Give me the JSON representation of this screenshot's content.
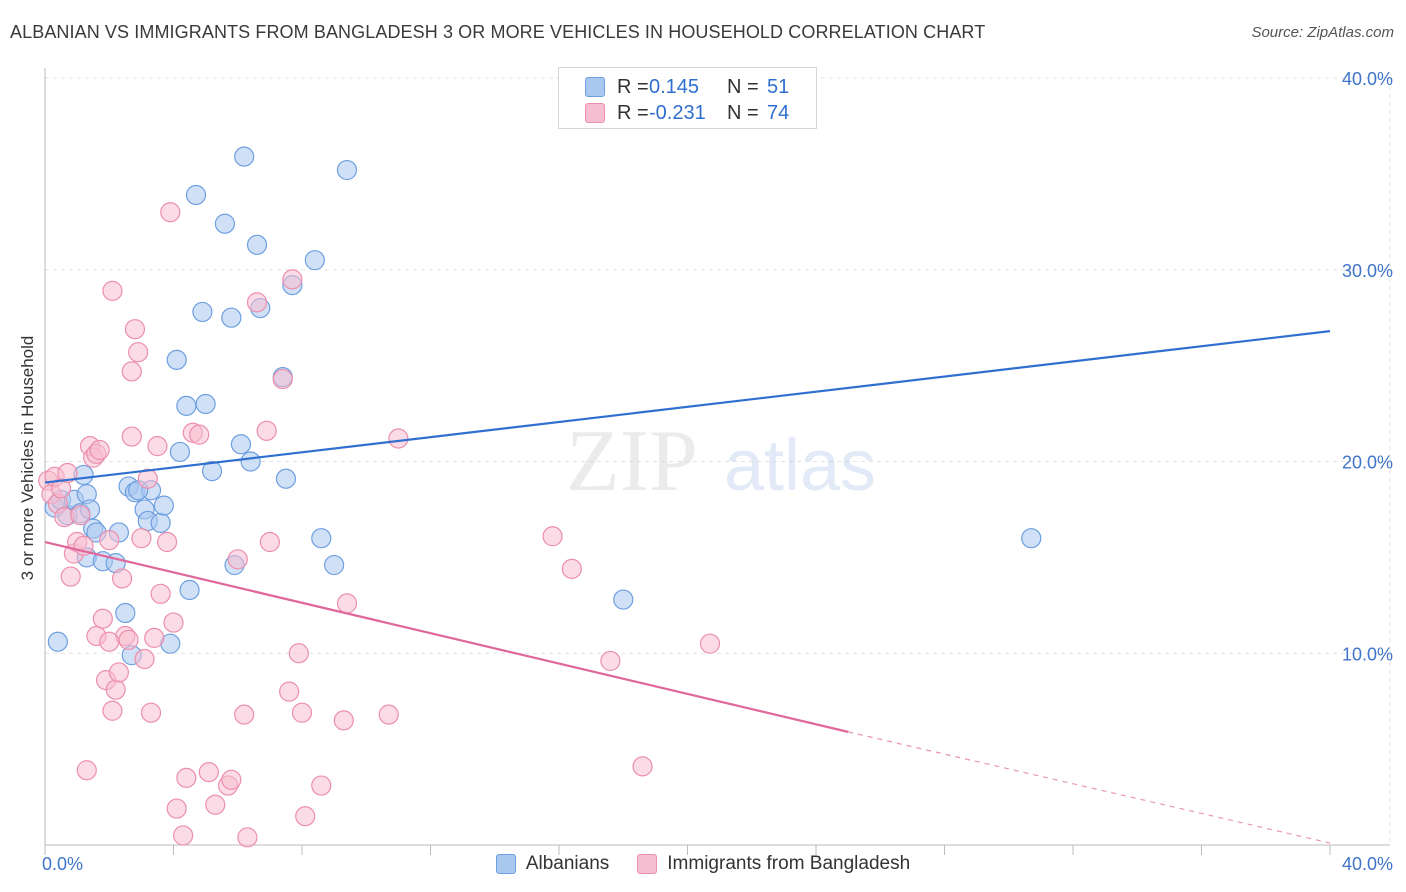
{
  "title": "ALBANIAN VS IMMIGRANTS FROM BANGLADESH 3 OR MORE VEHICLES IN HOUSEHOLD CORRELATION CHART",
  "source": "Source: ZipAtlas.com",
  "watermark": {
    "zip": "ZIP",
    "atlas": "atlas"
  },
  "legend_top": {
    "rows": [
      {
        "r_label": "R =",
        "r_value": "0.145",
        "n_label": "N =",
        "n_value": "51",
        "color": "#a9c8f0",
        "stroke": "#6e9fe0"
      },
      {
        "r_label": "R =",
        "r_value": "-0.231",
        "n_label": "N =",
        "n_value": "74",
        "color": "#f7bdd0",
        "stroke": "#ec8fae"
      }
    ]
  },
  "legend_bottom": {
    "items": [
      {
        "label": "Albanians",
        "color": "#a9c8f0",
        "stroke": "#6e9fe0"
      },
      {
        "label": "Immigrants from Bangladesh",
        "color": "#f7bdd0",
        "stroke": "#ec8fae"
      }
    ]
  },
  "chart_data": {
    "type": "scatter",
    "title": "ALBANIAN VS IMMIGRANTS FROM BANGLADESH 3 OR MORE VEHICLES IN HOUSEHOLD CORRELATION CHART",
    "xlabel": "",
    "ylabel": "3 or more Vehicles in Household",
    "xlim": [
      0,
      40
    ],
    "ylim": [
      0,
      40
    ],
    "x_tick_labels": [
      "0.0%",
      "40.0%"
    ],
    "y_ticks": [
      10,
      20,
      30,
      40
    ],
    "y_tick_labels": [
      "10.0%",
      "20.0%",
      "30.0%",
      "40.0%"
    ],
    "grid": true,
    "series": [
      {
        "name": "Albanians",
        "color": "#a9c8f0",
        "stroke": "#6e9fe0",
        "line_color": "#2f6fcf",
        "trend": {
          "x0": 0,
          "y0": 18.9,
          "x1": 40,
          "y1": 26.8
        },
        "points": [
          [
            0.3,
            17.6
          ],
          [
            0.5,
            18.0
          ],
          [
            0.7,
            17.2
          ],
          [
            0.9,
            18.0
          ],
          [
            1.1,
            17.3
          ],
          [
            0.4,
            10.6
          ],
          [
            1.3,
            18.3
          ],
          [
            1.2,
            19.3
          ],
          [
            1.5,
            16.5
          ],
          [
            1.6,
            16.3
          ],
          [
            1.3,
            15.0
          ],
          [
            1.8,
            14.8
          ],
          [
            2.2,
            14.7
          ],
          [
            2.3,
            16.3
          ],
          [
            2.5,
            12.1
          ],
          [
            2.6,
            18.7
          ],
          [
            2.8,
            18.4
          ],
          [
            2.7,
            9.9
          ],
          [
            3.1,
            17.5
          ],
          [
            3.2,
            16.9
          ],
          [
            3.3,
            18.5
          ],
          [
            3.6,
            16.8
          ],
          [
            3.7,
            17.7
          ],
          [
            3.9,
            10.5
          ],
          [
            4.1,
            25.3
          ],
          [
            4.2,
            20.5
          ],
          [
            4.4,
            22.9
          ],
          [
            4.5,
            13.3
          ],
          [
            4.7,
            33.9
          ],
          [
            4.9,
            27.8
          ],
          [
            5.0,
            23.0
          ],
          [
            5.2,
            19.5
          ],
          [
            5.6,
            32.4
          ],
          [
            5.8,
            27.5
          ],
          [
            5.9,
            14.6
          ],
          [
            6.1,
            20.9
          ],
          [
            6.2,
            35.9
          ],
          [
            6.4,
            20.0
          ],
          [
            6.6,
            31.3
          ],
          [
            6.7,
            28.0
          ],
          [
            7.4,
            24.4
          ],
          [
            7.5,
            19.1
          ],
          [
            7.7,
            29.2
          ],
          [
            8.4,
            30.5
          ],
          [
            8.6,
            16.0
          ],
          [
            9.0,
            14.6
          ],
          [
            9.4,
            35.2
          ],
          [
            18.0,
            12.8
          ],
          [
            30.7,
            16.0
          ],
          [
            2.9,
            18.5
          ],
          [
            1.4,
            17.5
          ]
        ]
      },
      {
        "name": "Immigrants from Bangladesh",
        "color": "#f7bdd0",
        "stroke": "#ec8fae",
        "line_color": "#e0679a",
        "trend": {
          "x0": 0,
          "y0": 15.8,
          "x1": 25.0,
          "y1": 5.9
        },
        "trend_dash": {
          "x0": 25.0,
          "y0": 5.9,
          "x1": 40,
          "y1": 0.1
        },
        "points": [
          [
            0.1,
            19.0
          ],
          [
            0.2,
            18.3
          ],
          [
            0.3,
            19.2
          ],
          [
            0.4,
            17.8
          ],
          [
            0.5,
            18.6
          ],
          [
            0.6,
            17.1
          ],
          [
            0.7,
            19.4
          ],
          [
            0.8,
            14.0
          ],
          [
            0.9,
            15.2
          ],
          [
            1.0,
            15.8
          ],
          [
            1.2,
            15.6
          ],
          [
            1.1,
            17.2
          ],
          [
            1.3,
            3.9
          ],
          [
            1.4,
            20.8
          ],
          [
            1.5,
            20.2
          ],
          [
            1.6,
            20.4
          ],
          [
            1.7,
            20.6
          ],
          [
            1.6,
            10.9
          ],
          [
            1.8,
            11.8
          ],
          [
            1.9,
            8.6
          ],
          [
            2.0,
            15.9
          ],
          [
            2.1,
            7.0
          ],
          [
            2.2,
            8.1
          ],
          [
            2.3,
            9.0
          ],
          [
            2.1,
            28.9
          ],
          [
            2.4,
            13.9
          ],
          [
            2.5,
            10.9
          ],
          [
            2.6,
            10.7
          ],
          [
            2.7,
            21.3
          ],
          [
            2.7,
            24.7
          ],
          [
            2.8,
            26.9
          ],
          [
            2.9,
            25.7
          ],
          [
            3.0,
            16.0
          ],
          [
            3.1,
            9.7
          ],
          [
            3.2,
            19.1
          ],
          [
            3.3,
            6.9
          ],
          [
            3.4,
            10.8
          ],
          [
            3.5,
            20.8
          ],
          [
            3.6,
            13.1
          ],
          [
            3.8,
            15.8
          ],
          [
            3.9,
            33.0
          ],
          [
            4.0,
            11.6
          ],
          [
            4.1,
            1.9
          ],
          [
            4.3,
            0.5
          ],
          [
            4.4,
            3.5
          ],
          [
            4.6,
            21.5
          ],
          [
            4.8,
            21.4
          ],
          [
            5.1,
            3.8
          ],
          [
            5.3,
            2.1
          ],
          [
            5.7,
            3.1
          ],
          [
            5.8,
            3.4
          ],
          [
            6.0,
            14.9
          ],
          [
            6.2,
            6.8
          ],
          [
            6.3,
            0.4
          ],
          [
            6.6,
            28.3
          ],
          [
            6.9,
            21.6
          ],
          [
            7.0,
            15.8
          ],
          [
            7.4,
            24.3
          ],
          [
            7.6,
            8.0
          ],
          [
            7.7,
            29.5
          ],
          [
            7.9,
            10.0
          ],
          [
            8.0,
            6.9
          ],
          [
            8.1,
            1.5
          ],
          [
            8.6,
            3.1
          ],
          [
            9.3,
            6.5
          ],
          [
            9.4,
            12.6
          ],
          [
            10.7,
            6.8
          ],
          [
            11.0,
            21.2
          ],
          [
            15.8,
            16.1
          ],
          [
            16.4,
            14.4
          ],
          [
            17.6,
            9.6
          ],
          [
            18.6,
            4.1
          ],
          [
            20.7,
            10.5
          ],
          [
            2.0,
            10.6
          ]
        ]
      }
    ]
  }
}
